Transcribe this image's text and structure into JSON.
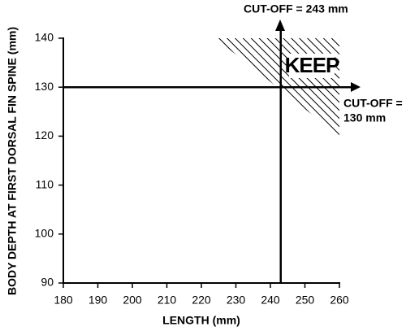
{
  "chart_data": {
    "type": "threshold",
    "x_label": "LENGTH (mm)",
    "y_label": "BODY DEPTH AT FIRST DORSAL FIN SPINE (mm)",
    "xlim": [
      180,
      260
    ],
    "xticks": [
      180,
      190,
      200,
      210,
      220,
      230,
      240,
      250,
      260
    ],
    "ylim": [
      90,
      140
    ],
    "yticks": [
      90,
      100,
      110,
      120,
      130,
      140
    ],
    "cutoffs": {
      "x": 243,
      "y": 130,
      "x_label": "CUT-OFF = 243 mm",
      "y_label": [
        "CUT-OFF =",
        "130 mm"
      ]
    },
    "region": {
      "label": "KEEP",
      "x": [
        224,
        260,
        260
      ],
      "y": [
        140,
        140,
        120
      ]
    }
  }
}
